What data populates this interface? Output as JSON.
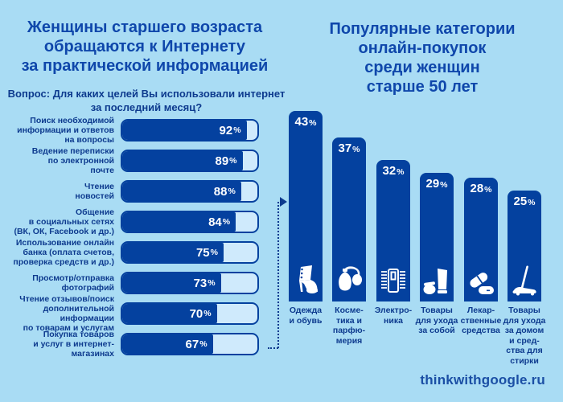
{
  "left_chart": {
    "title_lines": [
      "Женщины старшего возраста",
      "обращаются к Интернету",
      "за практической информацией"
    ],
    "question_label": "Вопрос:",
    "question_rest": " Для каких целей Вы использовали интернет за последний месяц?",
    "unit": "%",
    "items": [
      {
        "label_lines": [
          "Поиск необходимой",
          "информации и ответов",
          "на вопросы"
        ],
        "value": 92
      },
      {
        "label_lines": [
          "Ведение переписки",
          "по электронной",
          "почте"
        ],
        "value": 89
      },
      {
        "label_lines": [
          "Чтение",
          "новостей"
        ],
        "value": 88
      },
      {
        "label_lines": [
          "Общение",
          "в социальных сетях",
          "(ВК, ОК, Facebook и др.)"
        ],
        "value": 84
      },
      {
        "label_lines": [
          "Использование онлайн",
          "банка (оплата счетов,",
          "проверка средств и др.)"
        ],
        "value": 75
      },
      {
        "label_lines": [
          "Просмотр/отправка",
          "фотографий"
        ],
        "value": 73
      },
      {
        "label_lines": [
          "Чтение отзывов/поиск",
          "дополнительной информации",
          "по товарам и услугам"
        ],
        "value": 70
      },
      {
        "label_lines": [
          "Покупка товаров",
          "и услуг в интернет-",
          "магазинах"
        ],
        "value": 67
      }
    ]
  },
  "right_chart": {
    "title_lines": [
      "Популярные категории",
      "онлайн-покупок",
      "среди женщин",
      "старше 50 лет"
    ],
    "unit": "%",
    "items": [
      {
        "label_lines": [
          "Одежда",
          "и обувь"
        ],
        "value": 43,
        "icon": "boot-icon"
      },
      {
        "label_lines": [
          "Косме-",
          "тика и",
          "парфю-",
          "мерия"
        ],
        "value": 37,
        "icon": "perfume-icon"
      },
      {
        "label_lines": [
          "Электро-",
          "ника"
        ],
        "value": 32,
        "icon": "electronics-icon"
      },
      {
        "label_lines": [
          "Товары",
          "для ухода",
          "за собой"
        ],
        "value": 29,
        "icon": "selfcare-icon"
      },
      {
        "label_lines": [
          "Лекар-",
          "ственные",
          "средства"
        ],
        "value": 28,
        "icon": "pills-icon"
      },
      {
        "label_lines": [
          "Товары",
          "для ухода",
          "за домом",
          "и сред-",
          "ства для",
          "стирки"
        ],
        "value": 25,
        "icon": "mop-icon"
      }
    ]
  },
  "footer": {
    "site": "thinkwithgoogle.ru"
  },
  "colors": {
    "background": "#a9dcf4",
    "bar_fill": "#04419f",
    "bar_track": "#cfeafc",
    "title_text": "#0f47ab",
    "body_text": "#0d3a8e",
    "value_text": "#ffffff"
  },
  "chart_data": [
    {
      "type": "bar",
      "orientation": "horizontal",
      "title": "Женщины старшего возраста обращаются к Интернету за практической информацией",
      "subtitle": "Вопрос: Для каких целей Вы использовали интернет за последний месяц?",
      "categories": [
        "Поиск необходимой информации и ответов на вопросы",
        "Ведение переписки по электронной почте",
        "Чтение новостей",
        "Общение в социальных сетях (ВК, ОК, Facebook и др.)",
        "Использование онлайн банка (оплата счетов, проверка средств и др.)",
        "Просмотр/отправка фотографий",
        "Чтение отзывов/поиск дополнительной информации по товарам и услугам",
        "Покупка товаров и услуг в интернет-магазинах"
      ],
      "values": [
        92,
        89,
        88,
        84,
        75,
        73,
        70,
        67
      ],
      "unit": "%",
      "xlim": [
        0,
        100
      ],
      "data_labels": true,
      "grid": false,
      "legend": false
    },
    {
      "type": "bar",
      "orientation": "vertical",
      "title": "Популярные категории онлайн-покупок среди женщин старше 50 лет",
      "categories": [
        "Одежда и обувь",
        "Косметика и парфюмерия",
        "Электроника",
        "Товары для ухода за собой",
        "Лекарственные средства",
        "Товары для ухода за домом и средства для стирки"
      ],
      "values": [
        43,
        37,
        32,
        29,
        28,
        25
      ],
      "unit": "%",
      "data_labels": true,
      "grid": false,
      "legend": false
    }
  ]
}
